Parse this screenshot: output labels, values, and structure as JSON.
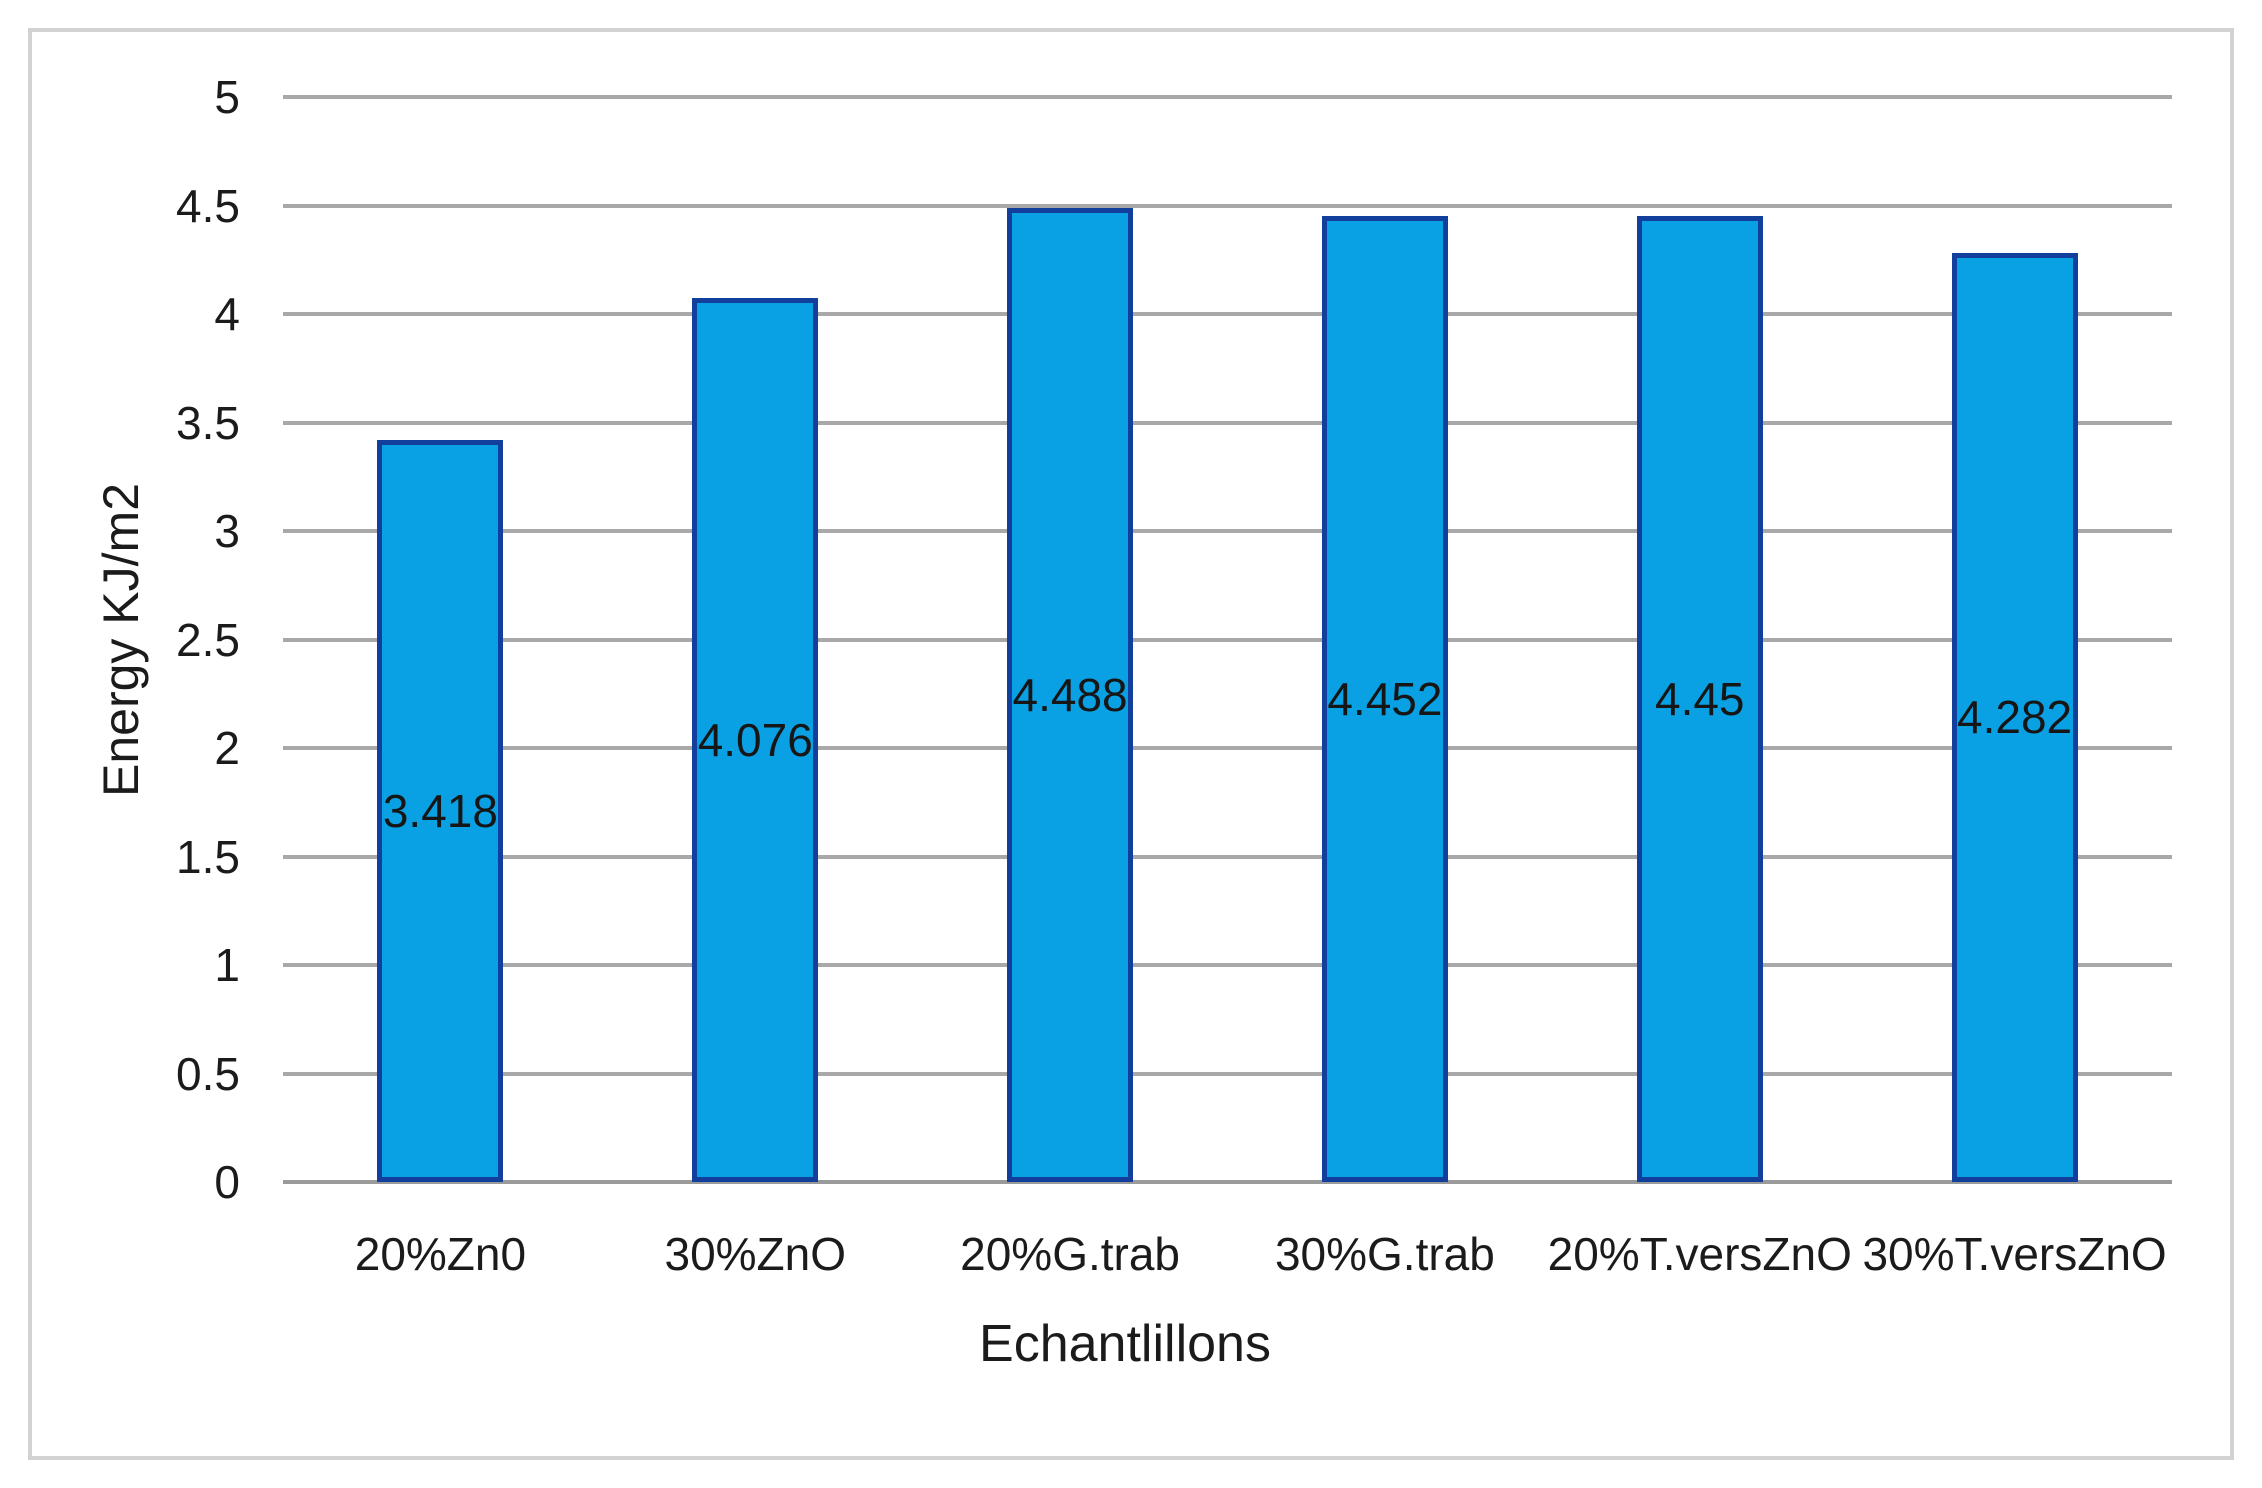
{
  "chart_data": {
    "type": "bar",
    "title": "",
    "categories": [
      "20%Zn0",
      "30%ZnO",
      "20%G.trab",
      "30%G.trab",
      "20%T.versZnO",
      "30%T.versZnO"
    ],
    "values": [
      3.418,
      4.076,
      4.488,
      4.452,
      4.45,
      4.282
    ],
    "value_labels": [
      "3.418",
      "4.076",
      "4.488",
      "4.452",
      "4.45",
      "4.282"
    ],
    "xlabel": "Echantlillons",
    "ylabel": "Energy KJ/m2",
    "ylim": [
      0,
      5
    ],
    "ytick_step": 0.5,
    "yticks": [
      "0",
      "0.5",
      "1",
      "1.5",
      "2",
      "2.5",
      "3",
      "3.5",
      "4",
      "4.5",
      "5"
    ],
    "grid": true,
    "legend": false,
    "colors": {
      "bar_fill": "#0aa0e4",
      "bar_border": "#133f9c",
      "gridline": "#a8a8a8",
      "frame": "#d2d2d2",
      "text": "#1b1b1b"
    }
  }
}
